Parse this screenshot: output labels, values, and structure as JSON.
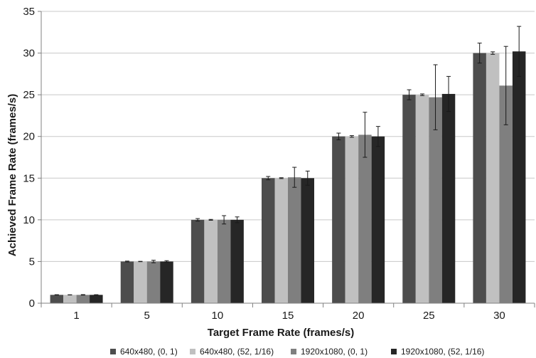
{
  "chart_data": {
    "type": "bar",
    "xlabel": "Target Frame Rate (frames/s)",
    "ylabel": "Achieved Frame Rate (frames/s)",
    "categories": [
      "1",
      "5",
      "10",
      "15",
      "20",
      "25",
      "30"
    ],
    "ylim": [
      0,
      35
    ],
    "yticks": [
      0,
      5,
      10,
      15,
      20,
      25,
      30,
      35
    ],
    "grid": true,
    "legend_position": "bottom",
    "series": [
      {
        "name": "640x480, (0, 1)",
        "color": "#4d4d4d",
        "values": [
          1.0,
          5.0,
          10.0,
          15.0,
          20.0,
          25.0,
          30.0
        ],
        "errors": [
          0.02,
          0.05,
          0.15,
          0.2,
          0.4,
          0.6,
          1.2
        ]
      },
      {
        "name": "640x480, (52, 1/16)",
        "color": "#c0c0c0",
        "values": [
          1.0,
          5.0,
          10.0,
          15.0,
          20.0,
          25.0,
          30.0
        ],
        "errors": [
          0.01,
          0.02,
          0.05,
          0.05,
          0.1,
          0.1,
          0.15
        ]
      },
      {
        "name": "1920x1080, (0, 1)",
        "color": "#7f7f7f",
        "values": [
          1.0,
          5.0,
          10.0,
          15.1,
          20.2,
          24.7,
          26.1
        ],
        "errors": [
          0.03,
          0.15,
          0.5,
          1.2,
          2.7,
          3.9,
          4.7
        ]
      },
      {
        "name": "1920x1080, (52, 1/16)",
        "color": "#262626",
        "values": [
          1.0,
          5.0,
          10.0,
          15.0,
          20.0,
          25.1,
          30.2
        ],
        "errors": [
          0.02,
          0.1,
          0.35,
          0.85,
          1.2,
          2.1,
          3.0
        ]
      }
    ]
  }
}
